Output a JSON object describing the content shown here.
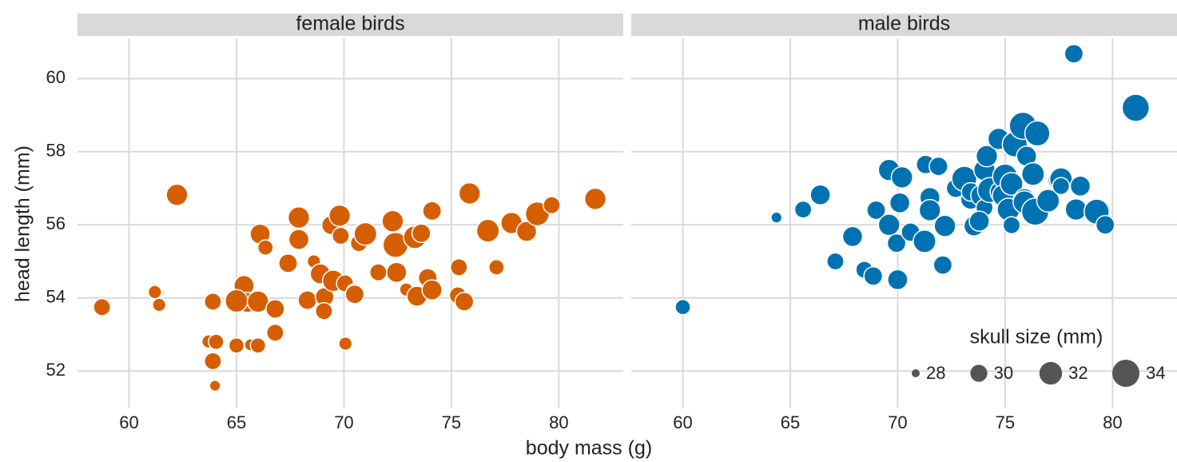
{
  "chart_data": {
    "type": "scatter",
    "xlabel": "body mass (g)",
    "ylabel": "head length (mm)",
    "xlim": [
      57.6,
      83.0
    ],
    "xticks": [
      60,
      65,
      70,
      75,
      80
    ],
    "ylim": [
      51.0,
      61.1
    ],
    "yticks": [
      52,
      54,
      56,
      58,
      60
    ],
    "grid": true,
    "size_legend": {
      "title": "skull size (mm)",
      "values": [
        28,
        30,
        32,
        34
      ]
    },
    "series": [
      {
        "name": "female birds",
        "color": "#d55e00",
        "x": [
          58.74,
          62.23,
          61.2,
          61.4,
          63.9,
          63.7,
          64.05,
          63.9,
          64.0,
          65.0,
          65.65,
          65.35,
          65.5,
          65.0,
          66.0,
          66.0,
          66.1,
          66.35,
          66.8,
          66.8,
          67.4,
          67.9,
          67.9,
          68.3,
          68.6,
          68.9,
          69.1,
          69.07,
          69.4,
          69.8,
          69.85,
          69.5,
          70.05,
          70.07,
          70.5,
          70.5,
          70.7,
          70.9,
          71.0,
          71.6,
          72.27,
          72.4,
          72.45,
          72.9,
          73.3,
          73.6,
          73.4,
          73.9,
          74.1,
          74.1,
          75.35,
          75.3,
          75.6,
          75.85,
          77.1,
          76.7,
          77.8,
          78.5,
          79.0,
          79.67,
          81.7
        ],
        "y": [
          53.75,
          56.82,
          54.16,
          53.81,
          53.9,
          52.81,
          52.8,
          52.27,
          51.6,
          52.7,
          52.72,
          54.34,
          53.88,
          53.92,
          53.9,
          52.7,
          55.75,
          55.38,
          53.7,
          53.05,
          54.95,
          56.2,
          55.6,
          53.94,
          55.0,
          54.66,
          54.03,
          53.64,
          55.99,
          56.25,
          55.7,
          54.47,
          54.4,
          52.75,
          54.16,
          54.1,
          55.5,
          55.8,
          55.75,
          54.7,
          56.1,
          55.45,
          54.7,
          54.23,
          55.66,
          55.77,
          54.05,
          54.55,
          54.22,
          56.38,
          54.84,
          54.07,
          53.9,
          56.86,
          54.84,
          55.84,
          56.05,
          55.82,
          56.3,
          56.54,
          56.71
        ],
        "size": [
          30,
          31.5,
          29,
          29,
          30,
          29,
          29.5,
          30,
          28.5,
          29.5,
          28.7,
          31,
          31,
          32,
          31.5,
          29.5,
          31,
          29.5,
          30.5,
          30,
          30.5,
          31.5,
          31,
          30.5,
          29,
          31,
          30.5,
          30,
          30.5,
          31.5,
          30,
          31.5,
          30,
          29,
          30,
          30.5,
          30,
          30.5,
          32,
          30,
          31.5,
          33,
          31,
          29,
          32,
          30.5,
          31,
          30.5,
          31,
          30.5,
          30,
          30,
          30.5,
          31.5,
          29.5,
          32,
          31.5,
          31,
          32.5,
          30,
          31.5
        ]
      },
      {
        "name": "male birds",
        "color": "#0072b2",
        "x": [
          60.0,
          64.36,
          65.6,
          66.4,
          67.1,
          67.8,
          67.9,
          68.45,
          68.86,
          69.0,
          69.6,
          69.6,
          70.2,
          70.1,
          69.95,
          70.0,
          70.6,
          71.3,
          71.5,
          71.5,
          71.25,
          71.9,
          72.2,
          72.1,
          72.7,
          73.1,
          73.4,
          73.55,
          73.4,
          73.9,
          74.04,
          74.15,
          74.04,
          73.8,
          74.3,
          74.8,
          74.7,
          75.0,
          74.9,
          75.16,
          75.3,
          75.3,
          75.45,
          75.83,
          75.9,
          76.0,
          75.9,
          76.3,
          76.4,
          76.5,
          77.0,
          77.5,
          77.6,
          77.6,
          78.2,
          78.3,
          78.5,
          79.26,
          79.66,
          81.08
        ],
        "y": [
          53.75,
          56.2,
          56.42,
          56.82,
          55.0,
          55.66,
          55.68,
          54.77,
          54.6,
          56.4,
          56.0,
          57.5,
          57.3,
          56.6,
          55.5,
          54.5,
          55.8,
          57.65,
          56.75,
          56.4,
          55.55,
          57.6,
          55.97,
          54.9,
          57.0,
          57.26,
          56.7,
          55.97,
          56.9,
          56.8,
          57.5,
          57.88,
          56.47,
          56.1,
          56.95,
          56.9,
          58.35,
          57.32,
          56.8,
          56.42,
          57.12,
          55.99,
          58.2,
          58.71,
          56.72,
          57.88,
          56.62,
          57.39,
          56.36,
          58.5,
          56.66,
          57.23,
          57.25,
          57.06,
          60.68,
          56.42,
          57.06,
          56.36,
          56.0,
          59.2
        ],
        "size": [
          29.5,
          28.5,
          30,
          31,
          30,
          30,
          31,
          30,
          30.5,
          30.5,
          31.5,
          31.5,
          31.5,
          31,
          30.5,
          31,
          30.5,
          30.5,
          31,
          31.5,
          32,
          30.5,
          31.5,
          30.5,
          30.5,
          33,
          31,
          31,
          30.5,
          31.5,
          31.5,
          31.5,
          30,
          31,
          33,
          31.5,
          31.5,
          33,
          31.5,
          32,
          32,
          30,
          33,
          34,
          31,
          31,
          32,
          32,
          34,
          33,
          32,
          31.5,
          32,
          30,
          30.5,
          31.5,
          31,
          33,
          30.5,
          34
        ]
      }
    ]
  }
}
